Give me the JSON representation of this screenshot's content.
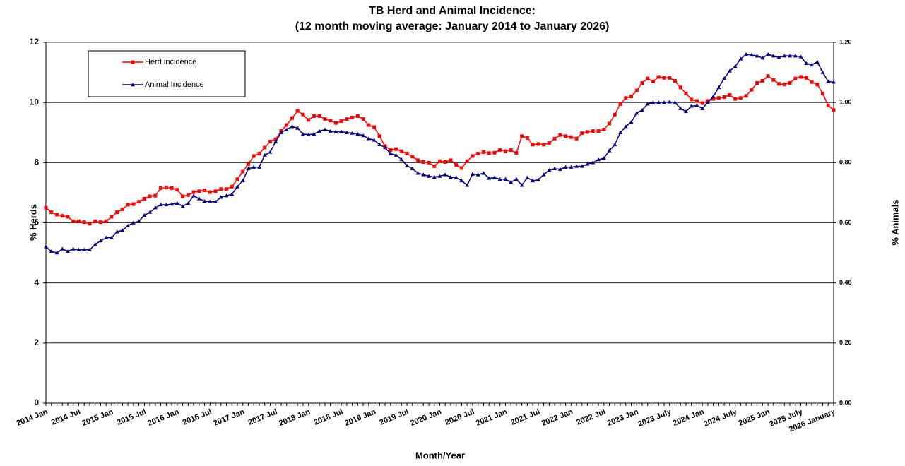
{
  "chart_data": {
    "type": "line",
    "title": "TB Herd and Animal Incidence:",
    "subtitle": "(12 month moving average: January 2014 to January 2026)",
    "x_label": "Month/Year",
    "y_label": "% Herds",
    "y2_label": "% Animals",
    "legend": "upper left",
    "grid": true,
    "categories": [
      "2014 Jan",
      null,
      null,
      null,
      null,
      null,
      "2014 Jul",
      null,
      null,
      null,
      null,
      null,
      "2015 Jan",
      null,
      null,
      null,
      null,
      null,
      "2015 Jul",
      null,
      null,
      null,
      null,
      null,
      "2016 Jan",
      null,
      null,
      null,
      null,
      null,
      "2016 Jul",
      null,
      null,
      null,
      null,
      null,
      "2017 Jan",
      null,
      null,
      null,
      null,
      null,
      "2017 Jul",
      null,
      null,
      null,
      null,
      null,
      "2018 Jan",
      null,
      null,
      null,
      null,
      null,
      "2018 Jul",
      null,
      null,
      null,
      null,
      null,
      "2019 Jan",
      null,
      null,
      null,
      null,
      null,
      "2019 Jul",
      null,
      null,
      null,
      null,
      null,
      "2020 Jan",
      null,
      null,
      null,
      null,
      null,
      "2020 Jul",
      null,
      null,
      null,
      null,
      null,
      "2021 Jan",
      null,
      null,
      null,
      null,
      null,
      "2021 Jul",
      null,
      null,
      null,
      null,
      null,
      "2022 Jan",
      null,
      null,
      null,
      null,
      null,
      "2022 Jul",
      null,
      null,
      null,
      null,
      null,
      "2023 Jan",
      null,
      null,
      null,
      null,
      null,
      "2023 July",
      null,
      null,
      null,
      null,
      null,
      "2024 Jan",
      null,
      null,
      null,
      null,
      null,
      "2024 July",
      null,
      null,
      null,
      null,
      null,
      "2025 Jan",
      null,
      null,
      null,
      null,
      null,
      "2025 July",
      null,
      null,
      null,
      null,
      null,
      "2026 January"
    ],
    "ylim": [
      0,
      12
    ],
    "yticks": [
      0,
      2,
      4,
      6,
      8,
      10,
      12
    ],
    "y2lim": [
      0,
      1.2
    ],
    "y2ticks": [
      {
        "value": 0,
        "label": "0.00"
      },
      {
        "value": 0.2,
        "label": "0.20"
      },
      {
        "value": 0.4,
        "label": "0.40"
      },
      {
        "value": 0.6,
        "label": "0.60"
      },
      {
        "value": 0.8,
        "label": "0.80"
      },
      {
        "value": 1.0,
        "label": "1.00"
      },
      {
        "value": 1.2,
        "label": "1.20"
      }
    ],
    "series": [
      {
        "name": "Herd incidence",
        "color": "#ff0000",
        "marker": "square",
        "values": [
          6.5,
          6.35,
          6.27,
          6.23,
          6.2,
          6.05,
          6.05,
          6.02,
          5.97,
          6.05,
          6.02,
          6.05,
          6.2,
          6.35,
          6.45,
          6.6,
          6.62,
          6.7,
          6.8,
          6.88,
          6.9,
          7.15,
          7.17,
          7.15,
          7.1,
          6.88,
          6.92,
          7.02,
          7.05,
          7.08,
          7.02,
          7.05,
          7.12,
          7.12,
          7.2,
          7.45,
          7.7,
          7.95,
          8.22,
          8.3,
          8.5,
          8.7,
          8.78,
          9.05,
          9.25,
          9.48,
          9.72,
          9.6,
          9.42,
          9.55,
          9.55,
          9.45,
          9.4,
          9.32,
          9.38,
          9.45,
          9.5,
          9.55,
          9.45,
          9.25,
          9.18,
          8.88,
          8.55,
          8.42,
          8.45,
          8.38,
          8.3,
          8.2,
          8.08,
          8.02,
          8.0,
          7.88,
          8.05,
          8.02,
          8.08,
          7.92,
          7.82,
          8.05,
          8.22,
          8.3,
          8.35,
          8.32,
          8.33,
          8.42,
          8.38,
          8.42,
          8.32,
          8.88,
          8.82,
          8.6,
          8.62,
          8.6,
          8.65,
          8.8,
          8.92,
          8.88,
          8.85,
          8.8,
          8.98,
          9.02,
          9.05,
          9.05,
          9.1,
          9.3,
          9.6,
          9.95,
          10.15,
          10.2,
          10.4,
          10.65,
          10.8,
          10.7,
          10.85,
          10.82,
          10.82,
          10.72,
          10.5,
          10.3,
          10.1,
          10.05,
          9.98,
          10.05,
          10.12,
          10.15,
          10.18,
          10.25,
          10.12,
          10.15,
          10.22,
          10.42,
          10.65,
          10.72,
          10.88,
          10.75,
          10.62,
          10.6,
          10.65,
          10.8,
          10.85,
          10.82,
          10.68,
          10.6,
          10.3,
          9.9,
          9.75
        ]
      },
      {
        "name": "Animal Incidence",
        "color": "#000080",
        "marker": "triangle",
        "axis": "y2",
        "values": [
          0.52,
          0.505,
          0.5,
          0.513,
          0.505,
          0.513,
          0.51,
          0.51,
          0.51,
          0.528,
          0.54,
          0.55,
          0.55,
          0.57,
          0.575,
          0.59,
          0.6,
          0.605,
          0.625,
          0.635,
          0.65,
          0.66,
          0.66,
          0.662,
          0.665,
          0.655,
          0.665,
          0.69,
          0.68,
          0.672,
          0.67,
          0.67,
          0.685,
          0.69,
          0.695,
          0.72,
          0.74,
          0.78,
          0.785,
          0.785,
          0.825,
          0.835,
          0.87,
          0.9,
          0.91,
          0.92,
          0.915,
          0.895,
          0.893,
          0.895,
          0.905,
          0.91,
          0.905,
          0.903,
          0.903,
          0.9,
          0.898,
          0.895,
          0.89,
          0.88,
          0.875,
          0.86,
          0.85,
          0.83,
          0.825,
          0.81,
          0.79,
          0.78,
          0.765,
          0.76,
          0.755,
          0.752,
          0.755,
          0.76,
          0.752,
          0.75,
          0.74,
          0.725,
          0.762,
          0.76,
          0.765,
          0.748,
          0.75,
          0.745,
          0.745,
          0.735,
          0.745,
          0.725,
          0.75,
          0.74,
          0.743,
          0.76,
          0.775,
          0.78,
          0.778,
          0.785,
          0.785,
          0.788,
          0.788,
          0.795,
          0.8,
          0.81,
          0.815,
          0.84,
          0.86,
          0.9,
          0.92,
          0.935,
          0.965,
          0.975,
          0.995,
          1.0,
          1.0,
          1.0,
          1.002,
          1.0,
          0.98,
          0.97,
          0.988,
          0.99,
          0.98,
          1.0,
          1.02,
          1.05,
          1.08,
          1.105,
          1.12,
          1.145,
          1.16,
          1.158,
          1.155,
          1.148,
          1.16,
          1.155,
          1.15,
          1.155,
          1.155,
          1.155,
          1.152,
          1.13,
          1.125,
          1.135,
          1.1,
          1.07,
          1.068
        ]
      }
    ]
  }
}
